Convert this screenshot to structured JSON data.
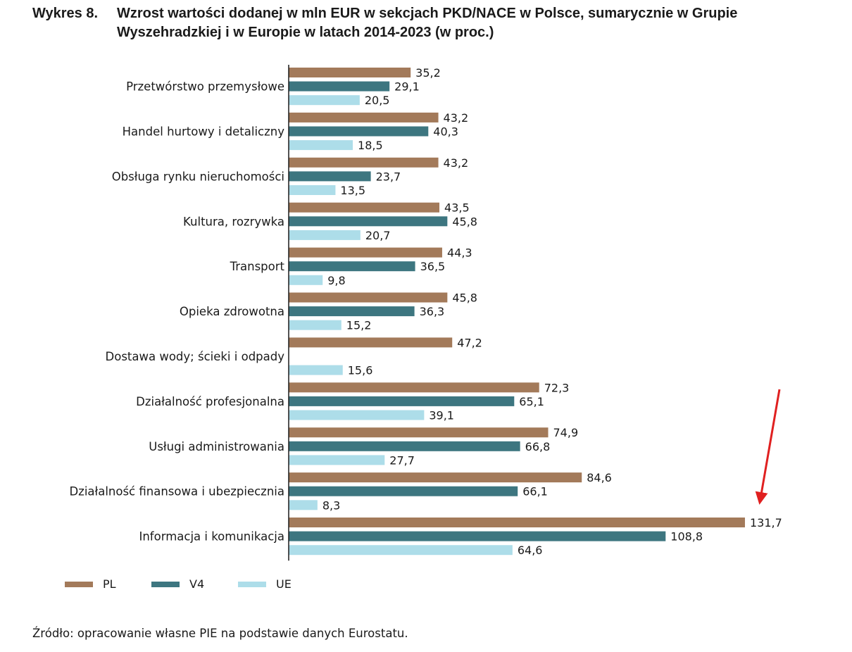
{
  "figure": {
    "number": "Wykres 8.",
    "title": "Wzrost wartości dodanej w mln EUR w sekcjach PKD/NACE w Polsce, sumarycznie w Grupie Wyszehradzkiej i w Europie w latach 2014-2023 (w proc.)"
  },
  "chart_data": {
    "type": "bar",
    "orientation": "horizontal",
    "title": "Wzrost wartości dodanej w mln EUR w sekcjach PKD/NACE w Polsce, sumarycznie w Grupie Wyszehradzkiej i w Europie w latach 2014-2023 (w proc.)",
    "xlabel": "",
    "ylabel": "",
    "xlim": [
      0,
      140
    ],
    "grid": false,
    "legend_position": "bottom-left",
    "categories": [
      "Przetwórstwo przemysłowe",
      "Handel hurtowy i detaliczny",
      "Obsługa rynku nieruchomości",
      "Kultura, rozrywka",
      "Transport",
      "Opieka zdrowotna",
      "Dostawa wody; ścieki i odpady",
      "Działalność profesjonalna",
      "Usługi administrowania",
      "Działalność finansowa i ubezpiecznia",
      "Informacja i komunikacja"
    ],
    "series": [
      {
        "name": "PL",
        "color": "#a37a5a",
        "values": [
          35.2,
          43.2,
          43.2,
          43.5,
          44.3,
          45.8,
          47.2,
          72.3,
          74.9,
          84.6,
          131.7
        ],
        "labels": [
          "35,2",
          "43,2",
          "43,2",
          "43,5",
          "44,3",
          "45,8",
          "47,2",
          "72,3",
          "74,9",
          "84,6",
          "131,7"
        ]
      },
      {
        "name": "V4",
        "color": "#3d7680",
        "values": [
          29.1,
          40.3,
          23.7,
          45.8,
          36.5,
          36.3,
          null,
          65.1,
          66.8,
          66.1,
          108.8
        ],
        "labels": [
          "29,1",
          "40,3",
          "23,7",
          "45,8",
          "36,5",
          "36,3",
          "",
          "65,1",
          "66,8",
          "66,1",
          "108,8"
        ]
      },
      {
        "name": "UE",
        "color": "#addde9",
        "values": [
          20.5,
          18.5,
          13.5,
          20.7,
          9.8,
          15.2,
          15.6,
          39.1,
          27.7,
          8.3,
          64.6
        ],
        "labels": [
          "20,5",
          "18,5",
          "13,5",
          "20,7",
          "9,8",
          "15,2",
          "15,6",
          "39,1",
          "27,7",
          "8,3",
          "64,6"
        ]
      }
    ],
    "annotations": [
      {
        "type": "arrow",
        "color": "#e02020",
        "points_to": "Informacja i komunikacja / PL"
      }
    ]
  },
  "legend": [
    {
      "name": "PL",
      "color": "#a37a5a"
    },
    {
      "name": "V4",
      "color": "#3d7680"
    },
    {
      "name": "UE",
      "color": "#addde9"
    }
  ],
  "source": "Źródło: opracowanie własne PIE na podstawie danych Eurostatu."
}
